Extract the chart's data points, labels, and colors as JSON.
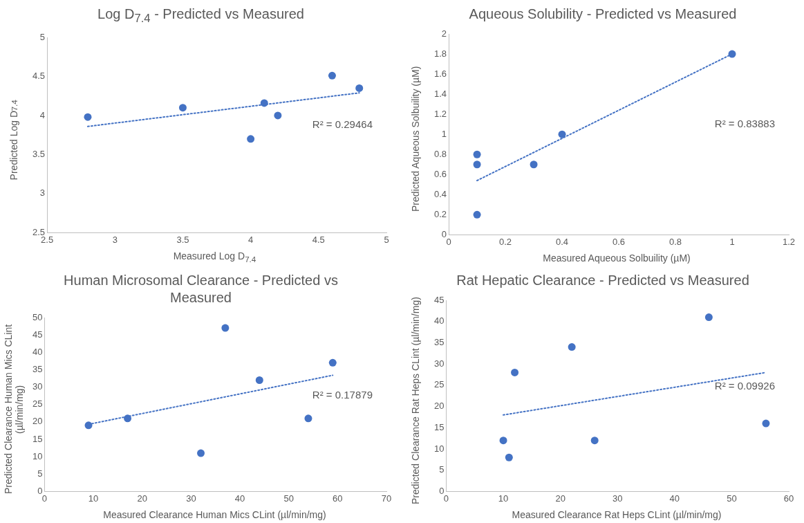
{
  "chart_data": [
    {
      "type": "scatter",
      "title": "Log D$_{7.4}$ - Predicted vs Measured",
      "xlabel": "Measured Log D$_{7.4}$",
      "ylabel": "Predicted Log D$_{7.4}$",
      "xlim": [
        2.5,
        5
      ],
      "xticks": [
        2.5,
        3,
        3.5,
        4,
        4.5,
        5
      ],
      "ylim": [
        2.5,
        5
      ],
      "yticks": [
        2.5,
        3,
        3.5,
        4,
        4.5,
        5
      ],
      "marker": "circle",
      "series": [
        {
          "type": "scatter",
          "color": "#4472c4",
          "x": [
            2.8,
            3.5,
            4.0,
            4.1,
            4.2,
            4.6,
            4.8
          ],
          "values": [
            3.98,
            4.1,
            3.7,
            4.16,
            4.0,
            4.51,
            4.35
          ]
        },
        {
          "type": "line",
          "color": "#4472c4",
          "line_style": "dotted",
          "marker": "none",
          "x": [
            2.8,
            4.8
          ],
          "values": [
            3.86,
            4.29
          ]
        }
      ],
      "annotations": [
        "R² = 0.29464"
      ]
    },
    {
      "type": "scatter",
      "title": "Aqueous Solubility - Predicted vs Measured",
      "xlabel": "Measured Aqueous Solbuility (µM)",
      "ylabel": "Predicted Aqueous Solbuility (µM)",
      "xlim": [
        0,
        1.2
      ],
      "xticks": [
        0,
        0.2,
        0.4,
        0.6,
        0.8,
        1,
        1.2
      ],
      "ylim": [
        0,
        2
      ],
      "yticks": [
        0,
        0.2,
        0.4,
        0.6,
        0.8,
        1,
        1.2,
        1.4,
        1.6,
        1.8,
        2
      ],
      "marker": "circle",
      "series": [
        {
          "type": "scatter",
          "color": "#4472c4",
          "x": [
            0.1,
            0.1,
            0.1,
            0.3,
            0.4,
            1.0
          ],
          "values": [
            0.8,
            0.7,
            0.2,
            0.7,
            1.0,
            1.8
          ]
        },
        {
          "type": "line",
          "color": "#4472c4",
          "line_style": "dotted",
          "marker": "none",
          "x": [
            0.1,
            1.0
          ],
          "values": [
            0.54,
            1.8
          ]
        }
      ],
      "annotations": [
        "R² = 0.83883"
      ]
    },
    {
      "type": "scatter",
      "title": "Human Microsomal Clearance - Predicted vs Measured",
      "xlabel": "Measured Clearance Human Mics CLint (µl/min/mg)",
      "ylabel": "Predicted Clearance Human Mics CLint (µl/min/mg)",
      "xlim": [
        0,
        70
      ],
      "xticks": [
        0,
        10,
        20,
        30,
        40,
        50,
        60,
        70
      ],
      "ylim": [
        0,
        50
      ],
      "yticks": [
        0,
        5,
        10,
        15,
        20,
        25,
        30,
        35,
        40,
        45,
        50
      ],
      "marker": "circle",
      "series": [
        {
          "type": "scatter",
          "color": "#4472c4",
          "x": [
            9,
            17,
            32,
            37,
            44,
            54,
            59
          ],
          "values": [
            19,
            21,
            11,
            47,
            32,
            21,
            37
          ]
        },
        {
          "type": "line",
          "color": "#4472c4",
          "line_style": "dotted",
          "marker": "none",
          "x": [
            9,
            59
          ],
          "values": [
            19.3,
            33.4
          ]
        }
      ],
      "annotations": [
        "R² = 0.17879"
      ]
    },
    {
      "type": "scatter",
      "title": "Rat Hepatic Clearance - Predicted vs Measured",
      "xlabel": "Measured Clearance Rat Heps CLint (µl/min/mg)",
      "ylabel": "Predicted Clearance Rat Heps CLint (µl/min/mg)",
      "xlim": [
        0,
        60
      ],
      "xticks": [
        0,
        10,
        20,
        30,
        40,
        50,
        60
      ],
      "ylim": [
        0,
        45
      ],
      "yticks": [
        0,
        5,
        10,
        15,
        20,
        25,
        30,
        35,
        40,
        45
      ],
      "marker": "circle",
      "series": [
        {
          "type": "scatter",
          "color": "#4472c4",
          "x": [
            10,
            11,
            12,
            22,
            26,
            46,
            56
          ],
          "values": [
            12,
            8,
            28,
            34,
            12,
            41,
            16
          ]
        },
        {
          "type": "line",
          "color": "#4472c4",
          "line_style": "dotted",
          "marker": "none",
          "x": [
            10,
            56
          ],
          "values": [
            18,
            28
          ]
        }
      ],
      "annotations": [
        "R² = 0.09926"
      ]
    }
  ]
}
